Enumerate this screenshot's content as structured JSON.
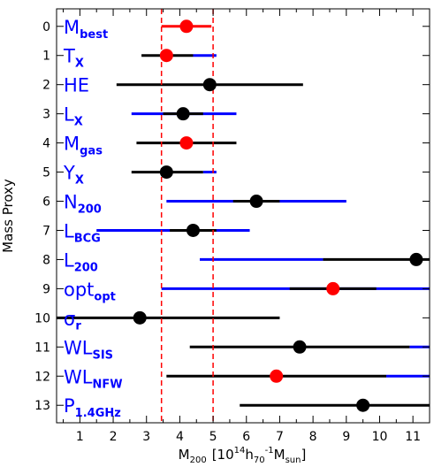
{
  "chart_data": {
    "type": "scatter",
    "subtype": "forest-plot",
    "xlabel": {
      "main": "M",
      "sub1": "200",
      "bracket_open": "[10",
      "sup1": "14",
      "h": "h",
      "sub2": "70",
      "sup2": "-1",
      "m2": "M",
      "sub3": "sun",
      "bracket_close": "]"
    },
    "ylabel": "Mass Proxy",
    "xlim": [
      0.3,
      11.5
    ],
    "ylim": [
      -0.6,
      13.6
    ],
    "y_inverted": true,
    "x_ticks": [
      1,
      2,
      3,
      4,
      5,
      6,
      7,
      8,
      9,
      10,
      11
    ],
    "x_tick_labels": [
      "1",
      "2",
      "3",
      "4",
      "5",
      "6",
      "7",
      "8",
      "9",
      "10",
      "11"
    ],
    "y_ticks": [
      0,
      1,
      2,
      3,
      4,
      5,
      6,
      7,
      8,
      9,
      10,
      11,
      12,
      13
    ],
    "y_tick_labels": [
      "0",
      "1",
      "2",
      "3",
      "4",
      "5",
      "6",
      "7",
      "8",
      "9",
      "10",
      "11",
      "12",
      "13"
    ],
    "vertical_lines": {
      "x": [
        3.45,
        5.0
      ],
      "style": "dashed",
      "color": "#ff0000"
    },
    "colors": {
      "red": "#ff0000",
      "black": "#000000",
      "blue": "#0000ff"
    },
    "proxies": [
      {
        "index": 0,
        "name": "M",
        "sub": "best",
        "x": 4.2,
        "marker": "red",
        "black_range": [
          3.45,
          4.95
        ],
        "black_color": "red",
        "blue_range": null
      },
      {
        "index": 1,
        "name": "T",
        "sub": "X",
        "x": 3.6,
        "marker": "red",
        "black_range": [
          2.85,
          4.4
        ],
        "black_color": "black",
        "blue_range": [
          4.4,
          5.1
        ]
      },
      {
        "index": 2,
        "name": "HE",
        "sub": "",
        "x": 4.9,
        "marker": "black",
        "black_range": [
          2.1,
          7.7
        ],
        "black_color": "black",
        "blue_range": null
      },
      {
        "index": 3,
        "name": "L",
        "sub": "X",
        "x": 4.1,
        "marker": "black",
        "black_range": [
          3.5,
          4.7
        ],
        "black_color": "black",
        "blue_range": [
          2.55,
          5.7
        ]
      },
      {
        "index": 4,
        "name": "M",
        "sub": "gas",
        "x": 4.2,
        "marker": "red",
        "black_range": [
          2.7,
          5.7
        ],
        "black_color": "black",
        "blue_range": null
      },
      {
        "index": 5,
        "name": "Y",
        "sub": "X",
        "x": 3.6,
        "marker": "black",
        "black_range": [
          2.55,
          4.7
        ],
        "black_color": "black",
        "blue_range": [
          4.7,
          5.1
        ]
      },
      {
        "index": 6,
        "name": "N",
        "sub": "200",
        "x": 6.3,
        "marker": "black",
        "black_range": [
          5.6,
          7.0
        ],
        "black_color": "black",
        "blue_range": [
          3.6,
          9.0
        ]
      },
      {
        "index": 7,
        "name": "L",
        "sub": "BCG",
        "x": 4.4,
        "marker": "black",
        "black_range": [
          3.7,
          5.1
        ],
        "black_color": "black",
        "blue_range": [
          1.5,
          6.1
        ]
      },
      {
        "index": 8,
        "name": "L",
        "sub": "200",
        "x": 11.1,
        "marker": "black",
        "black_range": [
          8.3,
          11.5
        ],
        "black_color": "black",
        "blue_range": [
          4.6,
          8.3
        ]
      },
      {
        "index": 9,
        "name": "opt",
        "sub": "opt",
        "x": 8.6,
        "marker": "red",
        "black_range": [
          7.3,
          9.9
        ],
        "black_color": "black",
        "blue_range": [
          3.45,
          11.5
        ]
      },
      {
        "index": 10,
        "name": "σ",
        "sub": "r",
        "x": 2.8,
        "marker": "black",
        "black_range": [
          0.3,
          7.0
        ],
        "black_color": "black",
        "blue_range": null
      },
      {
        "index": 11,
        "name": "WL",
        "sub": "SIS",
        "x": 7.6,
        "marker": "black",
        "black_range": [
          4.3,
          10.9
        ],
        "black_color": "black",
        "blue_range": [
          10.9,
          11.5
        ]
      },
      {
        "index": 12,
        "name": "WL",
        "sub": "NFW",
        "x": 6.9,
        "marker": "red",
        "black_range": [
          3.6,
          10.2
        ],
        "black_color": "black",
        "blue_range": [
          10.2,
          11.5
        ]
      },
      {
        "index": 13,
        "name": "P",
        "sub": "1.4GHz",
        "x": 9.5,
        "marker": "black",
        "black_range": [
          5.8,
          11.5
        ],
        "black_color": "black",
        "blue_range": null
      }
    ]
  }
}
